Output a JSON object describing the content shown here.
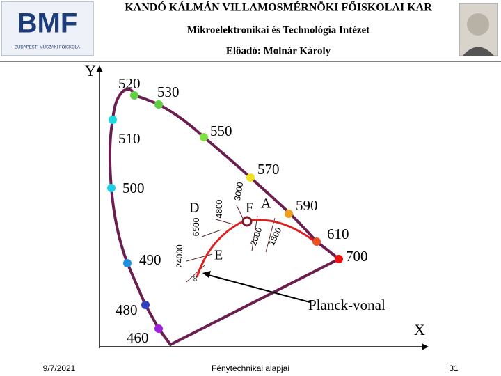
{
  "header": {
    "title": "KANDÓ KÁLMÁN VILLAMOSMÉRNÖKI FŐISKOLAI KAR",
    "subtitle": "Mikroelektronikai és Technológia Intézet",
    "lecturer": "Előadó: Molnár Károly",
    "logo": {
      "text": "BMF",
      "caption": "BUDAPESTI MŰSZAKI FŐISKOLA"
    }
  },
  "diagram": {
    "axes": {
      "x": "X",
      "y": "Y"
    },
    "wavelengths": [
      "460",
      "480",
      "490",
      "500",
      "510",
      "520",
      "530",
      "550",
      "570",
      "590",
      "610",
      "700"
    ],
    "temperatures": [
      "∞",
      "24000",
      "6500",
      "4800",
      "3000",
      "2000",
      "1500"
    ],
    "points": [
      "D",
      "F",
      "A",
      "E"
    ],
    "planck_label": "Planck-vonal"
  },
  "footer": {
    "date": "9/7/2021",
    "course": "Fénytechnikai alapjai",
    "page": "31"
  }
}
